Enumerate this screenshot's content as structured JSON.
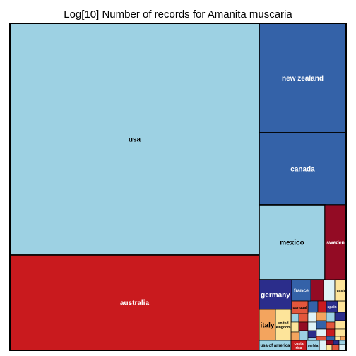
{
  "chart_data": {
    "type": "treemap",
    "title": "Log[10] Number of records for Amanita muscaria",
    "palette": {
      "light_blue": "#9dd1e3",
      "red": "#c91a1e",
      "dark_blue": "#3462a8",
      "dark_red": "#930b24",
      "navy": "#2b2d8b",
      "orange": "#f3a45e",
      "pale_yellow": "#fde49a",
      "tomato": "#e3563c",
      "pale_cyan": "#dff2f7"
    },
    "labeled_cells": [
      {
        "name": "usa",
        "value": 4.43,
        "color": "#9dd1e3",
        "text_color": "#000000"
      },
      {
        "name": "australia",
        "value": 1.71,
        "color": "#c91a1e",
        "text_color": "#ffffff"
      },
      {
        "name": "new zealand",
        "value": 0.64,
        "color": "#3462a8",
        "text_color": "#ffffff"
      },
      {
        "name": "canada",
        "value": 0.49,
        "color": "#3462a8",
        "text_color": "#ffffff"
      },
      {
        "name": "mexico",
        "value": 0.43,
        "color": "#9dd1e3",
        "text_color": "#000000"
      },
      {
        "name": "sweden",
        "value": 0.16,
        "color": "#930b24",
        "text_color": "#ffffff"
      },
      {
        "name": "germany",
        "value": 0.09,
        "color": "#2b2d8b",
        "text_color": "#ffffff"
      },
      {
        "name": "france",
        "value": 0.05,
        "color": "#3462a8",
        "text_color": "#ffffff"
      },
      {
        "name": "russia",
        "value": 0.02,
        "color": "#fde49a",
        "text_color": "#000000"
      },
      {
        "name": "italy",
        "value": 0.08,
        "color": "#f3a45e",
        "text_color": "#000000"
      },
      {
        "name": "united kingdom",
        "value": 0.05,
        "color": "#fde49a",
        "text_color": "#000000"
      },
      {
        "name": "usa of america",
        "value": 0.03,
        "color": "#9dd1e3",
        "text_color": "#000000"
      },
      {
        "name": "costa rica",
        "value": 0.025,
        "color": "#c91a1e",
        "text_color": "#ffffff"
      },
      {
        "name": "serbia",
        "value": 0.015,
        "color": "#9dd1e3",
        "text_color": "#000000"
      },
      {
        "name": "portugal",
        "value": 0.012,
        "color": "#e3563c",
        "text_color": "#000000"
      },
      {
        "name": "spain",
        "value": 0.01,
        "color": "#2b2d8b",
        "text_color": "#ffffff"
      }
    ],
    "unlabeled_cell_colors": [
      "#930b24",
      "#dff2f7",
      "#3462a8",
      "#c91a1e",
      "#fde49a",
      "#9dd1e3",
      "#e3563c",
      "#dff2f7",
      "#f3a45e",
      "#9dd1e3",
      "#2b2d8b",
      "#fde49a",
      "#930b24",
      "#dff2f7",
      "#3462a8",
      "#e3563c",
      "#fde49a",
      "#f3a45e",
      "#9dd1e3",
      "#2b2d8b",
      "#dff2f7",
      "#c91a1e",
      "#fde49a",
      "#9dd1e3",
      "#e3563c",
      "#3462a8",
      "#fde49a",
      "#f3a45e",
      "#dff2f7",
      "#930b24",
      "#2b2d8b",
      "#9dd1e3",
      "#fde49a",
      "#e3563c",
      "#dff2f7",
      "#3462a8",
      "#c91a1e",
      "#f3a45e",
      "#fde49a",
      "#2b2d8b"
    ]
  }
}
